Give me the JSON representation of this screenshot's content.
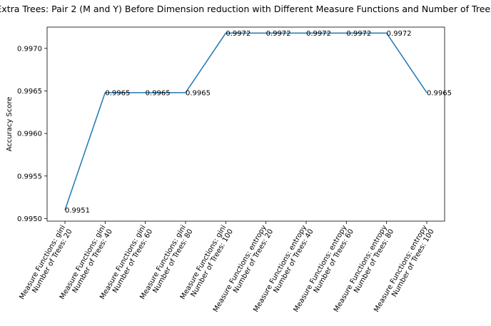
{
  "chart_data": {
    "type": "line",
    "title": "Extra Trees: Pair 2 (M and Y) Before Dimension reduction with Different Measure Functions and Number of Trees",
    "xlabel": "",
    "ylabel": "Accuracy Score",
    "categories": [
      [
        "Measure Functions: gini",
        "Number of Trees: 20"
      ],
      [
        "Measure Functions: gini",
        "Number of Trees: 40"
      ],
      [
        "Measure Functions: gini",
        "Number of Trees: 60"
      ],
      [
        "Measure Functions: gini",
        "Number of Trees: 80"
      ],
      [
        "Measure Functions: gini",
        "Number of Trees: 100"
      ],
      [
        "Measure Functions: entropy",
        "Number of Trees: 20"
      ],
      [
        "Measure Functions: entropy",
        "Number of Trees: 40"
      ],
      [
        "Measure Functions: entropy",
        "Number of Trees: 60"
      ],
      [
        "Measure Functions: entropy",
        "Number of Trees: 80"
      ],
      [
        "Measure Functions: entropy",
        "Number of Trees: 100"
      ]
    ],
    "values": [
      0.9951,
      0.99648,
      0.99648,
      0.99648,
      0.99718,
      0.99718,
      0.99718,
      0.99718,
      0.99718,
      0.99648
    ],
    "data_labels": [
      "0.9951",
      "0.9965",
      "0.9965",
      "0.9965",
      "0.9972",
      "0.9972",
      "0.9972",
      "0.9972",
      "0.9972",
      "0.9965"
    ],
    "yticks": [
      0.995,
      0.9955,
      0.996,
      0.9965,
      0.997
    ],
    "ytick_labels": [
      "0.9950",
      "0.9955",
      "0.9960",
      "0.9965",
      "0.9970"
    ],
    "ylim": [
      0.99497,
      0.99725
    ],
    "grid": false,
    "line_color": "#1f77b4"
  }
}
